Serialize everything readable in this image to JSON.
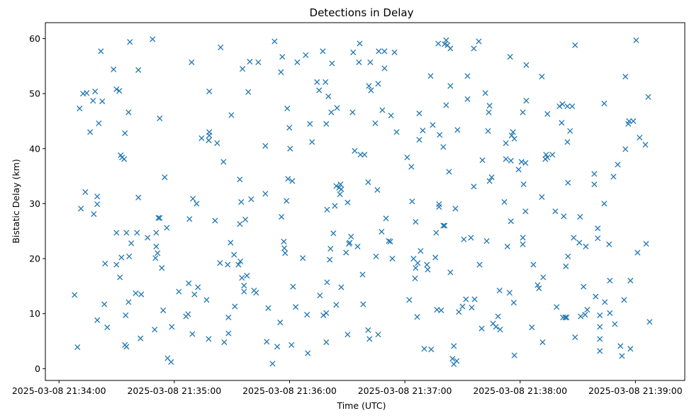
{
  "chart_data": {
    "type": "scatter",
    "title": "Detections in Delay",
    "xlabel": "Time (UTC)",
    "ylabel": "Bistatic Delay (km)",
    "x_unit": "seconds after 2025-03-08 21:34:00 UTC",
    "xlim": [
      -7.1,
      325.7
    ],
    "ylim": [
      -2.15,
      62.9
    ],
    "grid": false,
    "marker": "x",
    "color": "#1f77b4",
    "x_ticks": [
      {
        "value": 0,
        "label": "2025-03-08 21:34:00"
      },
      {
        "value": 60,
        "label": "2025-03-08 21:35:00"
      },
      {
        "value": 120,
        "label": "2025-03-08 21:36:00"
      },
      {
        "value": 180,
        "label": "2025-03-08 21:37:00"
      },
      {
        "value": 240,
        "label": "2025-03-08 21:38:00"
      },
      {
        "value": 300,
        "label": "2025-03-08 21:39:00"
      }
    ],
    "y_ticks": [
      {
        "value": 0,
        "label": "0"
      },
      {
        "value": 10,
        "label": "10"
      },
      {
        "value": 20,
        "label": "20"
      },
      {
        "value": 30,
        "label": "30"
      },
      {
        "value": 40,
        "label": "40"
      },
      {
        "value": 50,
        "label": "50"
      },
      {
        "value": 60,
        "label": "60"
      }
    ],
    "points": [
      [
        8.1,
        13.4
      ],
      [
        9.6,
        3.9
      ],
      [
        10.7,
        47.3
      ],
      [
        11.4,
        29.1
      ],
      [
        12.5,
        50.0
      ],
      [
        13.7,
        32.1
      ],
      [
        14.4,
        50.1
      ],
      [
        16.2,
        43.0
      ],
      [
        17.7,
        48.7
      ],
      [
        18.1,
        28.1
      ],
      [
        18.8,
        50.4
      ],
      [
        19.9,
        31.3
      ],
      [
        19.9,
        29.9
      ],
      [
        19.9,
        8.8
      ],
      [
        20.7,
        44.6
      ],
      [
        21.8,
        57.7
      ],
      [
        22.5,
        48.6
      ],
      [
        23.6,
        11.7
      ],
      [
        24.0,
        19.1
      ],
      [
        25.1,
        7.5
      ],
      [
        28.4,
        54.4
      ],
      [
        29.9,
        50.8
      ],
      [
        29.9,
        24.7
      ],
      [
        29.9,
        18.9
      ],
      [
        31.4,
        50.5
      ],
      [
        31.7,
        16.6
      ],
      [
        32.1,
        38.8
      ],
      [
        32.5,
        20.2
      ],
      [
        32.8,
        38.4
      ],
      [
        33.9,
        38.1
      ],
      [
        34.3,
        42.8
      ],
      [
        34.3,
        4.3
      ],
      [
        35.1,
        24.7
      ],
      [
        34.7,
        9.7
      ],
      [
        35.1,
        4.0
      ],
      [
        36.2,
        12.1
      ],
      [
        36.2,
        46.6
      ],
      [
        36.5,
        20.4
      ],
      [
        36.9,
        59.4
      ],
      [
        37.6,
        22.8
      ],
      [
        39.9,
        13.7
      ],
      [
        40.6,
        24.7
      ],
      [
        41.3,
        31.1
      ],
      [
        41.3,
        54.3
      ],
      [
        42.8,
        13.5
      ],
      [
        42.4,
        5.5
      ],
      [
        46.1,
        23.8
      ],
      [
        48.7,
        59.9
      ],
      [
        49.8,
        7.1
      ],
      [
        50.2,
        20.1
      ],
      [
        50.6,
        24.7
      ],
      [
        50.6,
        22.2
      ],
      [
        51.3,
        21.0
      ],
      [
        51.7,
        27.4
      ],
      [
        52.4,
        27.4
      ],
      [
        52.4,
        45.5
      ],
      [
        53.5,
        18.3
      ],
      [
        54.2,
        10.6
      ],
      [
        55.0,
        34.8
      ],
      [
        56.1,
        25.6
      ],
      [
        56.5,
        1.9
      ],
      [
        58.3,
        1.2
      ],
      [
        58.7,
        7.6
      ],
      [
        62.4,
        14.0
      ],
      [
        66.1,
        9.5
      ],
      [
        67.2,
        9.9
      ],
      [
        67.5,
        15.5
      ],
      [
        67.9,
        27.2
      ],
      [
        69.0,
        55.7
      ],
      [
        69.4,
        6.3
      ],
      [
        69.7,
        30.9
      ],
      [
        70.5,
        13.5
      ],
      [
        71.6,
        30.0
      ],
      [
        72.3,
        14.8
      ],
      [
        74.2,
        41.9
      ],
      [
        76.8,
        12.5
      ],
      [
        77.9,
        41.5
      ],
      [
        78.2,
        42.4
      ],
      [
        78.2,
        43.0
      ],
      [
        78.2,
        50.4
      ],
      [
        77.9,
        5.4
      ],
      [
        81.2,
        26.9
      ],
      [
        82.3,
        41.0
      ],
      [
        83.8,
        19.2
      ],
      [
        84.1,
        58.4
      ],
      [
        85.6,
        37.6
      ],
      [
        86.0,
        4.8
      ],
      [
        87.8,
        18.9
      ],
      [
        88.2,
        9.3
      ],
      [
        88.2,
        6.4
      ],
      [
        89.3,
        22.9
      ],
      [
        89.7,
        46.1
      ],
      [
        91.1,
        20.7
      ],
      [
        91.5,
        11.3
      ],
      [
        93.4,
        18.9
      ],
      [
        94.1,
        34.4
      ],
      [
        94.1,
        26.3
      ],
      [
        94.4,
        19.5
      ],
      [
        94.8,
        30.3
      ],
      [
        95.2,
        16.5
      ],
      [
        95.5,
        54.5
      ],
      [
        96.3,
        15.1
      ],
      [
        96.3,
        14.0
      ],
      [
        97.0,
        27.1
      ],
      [
        97.8,
        16.9
      ],
      [
        98.5,
        50.3
      ],
      [
        99.3,
        55.8
      ],
      [
        100.0,
        30.8
      ],
      [
        101.5,
        14.2
      ],
      [
        102.6,
        13.8
      ],
      [
        103.7,
        55.7
      ],
      [
        107.4,
        40.5
      ],
      [
        107.4,
        31.8
      ],
      [
        108.1,
        4.9
      ],
      [
        108.9,
        11.0
      ],
      [
        111.1,
        0.9
      ],
      [
        112.2,
        59.5
      ],
      [
        113.6,
        4.0
      ],
      [
        115.1,
        8.4
      ],
      [
        115.5,
        53.9
      ],
      [
        115.8,
        27.6
      ],
      [
        116.2,
        56.7
      ],
      [
        117.0,
        23.1
      ],
      [
        117.3,
        21.9
      ],
      [
        117.7,
        21.0
      ],
      [
        118.4,
        30.5
      ],
      [
        118.8,
        47.3
      ],
      [
        119.2,
        34.5
      ],
      [
        119.9,
        43.8
      ],
      [
        120.3,
        40.0
      ],
      [
        121.0,
        4.3
      ],
      [
        121.4,
        34.1
      ],
      [
        121.8,
        14.9
      ],
      [
        123.2,
        11.2
      ],
      [
        124.0,
        55.7
      ],
      [
        126.9,
        20.1
      ],
      [
        128.4,
        57.0
      ],
      [
        129.1,
        9.8
      ],
      [
        129.5,
        2.8
      ],
      [
        130.6,
        44.5
      ],
      [
        131.7,
        41.2
      ],
      [
        134.3,
        52.1
      ],
      [
        135.4,
        50.6
      ],
      [
        135.8,
        13.3
      ],
      [
        137.3,
        57.7
      ],
      [
        137.6,
        9.7
      ],
      [
        138.7,
        52.1
      ],
      [
        139.1,
        44.5
      ],
      [
        139.1,
        4.8
      ],
      [
        139.1,
        10.1
      ],
      [
        139.5,
        15.7
      ],
      [
        139.5,
        28.9
      ],
      [
        140.2,
        49.5
      ],
      [
        140.9,
        19.8
      ],
      [
        141.3,
        21.8
      ],
      [
        141.7,
        46.6
      ],
      [
        142.1,
        55.5
      ],
      [
        142.8,
        24.6
      ],
      [
        143.6,
        29.6
      ],
      [
        144.3,
        11.6
      ],
      [
        144.3,
        33.2
      ],
      [
        144.7,
        47.4
      ],
      [
        145.8,
        32.9
      ],
      [
        146.2,
        31.7
      ],
      [
        146.5,
        33.5
      ],
      [
        146.9,
        14.8
      ],
      [
        146.9,
        32.6
      ],
      [
        149.4,
        21.1
      ],
      [
        150.2,
        30.2
      ],
      [
        150.2,
        6.2
      ],
      [
        150.9,
        22.7
      ],
      [
        151.3,
        22.9
      ],
      [
        152.0,
        24.0
      ],
      [
        152.8,
        46.6
      ],
      [
        153.1,
        57.5
      ],
      [
        153.9,
        39.6
      ],
      [
        155.4,
        22.2
      ],
      [
        156.1,
        55.7
      ],
      [
        156.5,
        59.1
      ],
      [
        156.9,
        38.9
      ],
      [
        158.0,
        17.1
      ],
      [
        158.3,
        11.7
      ],
      [
        159.0,
        38.9
      ],
      [
        160.9,
        33.9
      ],
      [
        160.9,
        7.0
      ],
      [
        161.3,
        51.4
      ],
      [
        161.6,
        5.4
      ],
      [
        162.0,
        55.7
      ],
      [
        162.4,
        50.6
      ],
      [
        164.6,
        44.6
      ],
      [
        165.0,
        20.4
      ],
      [
        165.7,
        32.5
      ],
      [
        166.1,
        6.2
      ],
      [
        166.1,
        51.8
      ],
      [
        166.4,
        57.7
      ],
      [
        167.9,
        24.9
      ],
      [
        168.3,
        47.0
      ],
      [
        169.4,
        54.6
      ],
      [
        169.4,
        57.7
      ],
      [
        170.2,
        27.3
      ],
      [
        171.6,
        23.2
      ],
      [
        172.4,
        23.1
      ],
      [
        172.8,
        46.0
      ],
      [
        173.5,
        20.0
      ],
      [
        174.6,
        57.5
      ],
      [
        175.7,
        43.0
      ],
      [
        181.2,
        38.4
      ],
      [
        182.3,
        12.5
      ],
      [
        183.4,
        36.7
      ],
      [
        183.8,
        30.4
      ],
      [
        184.5,
        20.0
      ],
      [
        185.3,
        16.4
      ],
      [
        185.6,
        18.3
      ],
      [
        185.6,
        26.7
      ],
      [
        186.4,
        9.4
      ],
      [
        186.7,
        19.2
      ],
      [
        187.5,
        46.4
      ],
      [
        187.5,
        41.6
      ],
      [
        188.2,
        21.4
      ],
      [
        189.3,
        43.3
      ],
      [
        190.1,
        3.6
      ],
      [
        191.5,
        18.9
      ],
      [
        191.9,
        18.0
      ],
      [
        193.4,
        53.2
      ],
      [
        193.7,
        3.5
      ],
      [
        194.5,
        44.3
      ],
      [
        195.9,
        20.2
      ],
      [
        196.3,
        24.7
      ],
      [
        196.7,
        10.7
      ],
      [
        197.4,
        59.1
      ],
      [
        197.8,
        29.4
      ],
      [
        197.8,
        29.9
      ],
      [
        198.1,
        42.5
      ],
      [
        198.9,
        10.6
      ],
      [
        200.0,
        26.0
      ],
      [
        200.0,
        40.3
      ],
      [
        200.7,
        59.0
      ],
      [
        200.7,
        26.0
      ],
      [
        201.5,
        47.9
      ],
      [
        201.5,
        59.7
      ],
      [
        202.2,
        58.8
      ],
      [
        203.7,
        51.4
      ],
      [
        203.7,
        58.2
      ],
      [
        203.0,
        35.8
      ],
      [
        203.7,
        17.5
      ],
      [
        204.8,
        1.8
      ],
      [
        205.5,
        4.1
      ],
      [
        205.5,
        0.8
      ],
      [
        206.3,
        29.1
      ],
      [
        207.0,
        1.4
      ],
      [
        207.4,
        43.4
      ],
      [
        208.1,
        10.3
      ],
      [
        210.0,
        11.3
      ],
      [
        210.7,
        23.5
      ],
      [
        211.8,
        12.6
      ],
      [
        212.6,
        53.2
      ],
      [
        212.6,
        49.0
      ],
      [
        214.4,
        23.8
      ],
      [
        214.8,
        11.1
      ],
      [
        215.9,
        33.1
      ],
      [
        215.9,
        58.2
      ],
      [
        216.3,
        12.6
      ],
      [
        218.5,
        59.5
      ],
      [
        218.9,
        18.9
      ],
      [
        220.0,
        7.3
      ],
      [
        220.4,
        37.9
      ],
      [
        221.9,
        50.1
      ],
      [
        222.6,
        23.2
      ],
      [
        223.3,
        43.2
      ],
      [
        223.7,
        46.6
      ],
      [
        224.1,
        47.8
      ],
      [
        224.1,
        34.1
      ],
      [
        225.2,
        34.8
      ],
      [
        225.9,
        8.2
      ],
      [
        227.4,
        7.6
      ],
      [
        228.5,
        9.5
      ],
      [
        229.3,
        14.2
      ],
      [
        229.6,
        7.1
      ],
      [
        231.8,
        30.3
      ],
      [
        232.6,
        38.1
      ],
      [
        232.6,
        41.0
      ],
      [
        233.4,
        22.2
      ],
      [
        234.5,
        13.8
      ],
      [
        234.8,
        56.7
      ],
      [
        235.2,
        26.8
      ],
      [
        235.2,
        37.8
      ],
      [
        235.6,
        42.4
      ],
      [
        236.3,
        43.0
      ],
      [
        236.7,
        12.0
      ],
      [
        237.0,
        2.4
      ],
      [
        237.0,
        41.8
      ],
      [
        239.2,
        36.2
      ],
      [
        240.7,
        37.6
      ],
      [
        241.4,
        46.6
      ],
      [
        241.4,
        23.8
      ],
      [
        241.4,
        22.6
      ],
      [
        241.8,
        33.5
      ],
      [
        242.8,
        28.6
      ],
      [
        242.8,
        37.4
      ],
      [
        243.2,
        48.7
      ],
      [
        243.2,
        55.2
      ],
      [
        246.1,
        7.5
      ],
      [
        246.9,
        18.9
      ],
      [
        249.1,
        15.2
      ],
      [
        249.8,
        14.6
      ],
      [
        251.3,
        53.1
      ],
      [
        251.3,
        31.2
      ],
      [
        251.7,
        4.8
      ],
      [
        252.0,
        16.6
      ],
      [
        253.1,
        38.1
      ],
      [
        253.5,
        38.9
      ],
      [
        254.2,
        46.3
      ],
      [
        254.2,
        38.4
      ],
      [
        256.8,
        38.9
      ],
      [
        258.3,
        28.6
      ],
      [
        259.0,
        11.2
      ],
      [
        260.5,
        47.7
      ],
      [
        261.6,
        44.7
      ],
      [
        262.0,
        48.1
      ],
      [
        262.3,
        9.3
      ],
      [
        262.7,
        27.7
      ],
      [
        263.5,
        9.3
      ],
      [
        263.8,
        18.6
      ],
      [
        264.2,
        9.3
      ],
      [
        264.6,
        41.2
      ],
      [
        264.6,
        47.7
      ],
      [
        264.9,
        20.4
      ],
      [
        264.9,
        33.8
      ],
      [
        266.0,
        43.2
      ],
      [
        267.1,
        47.7
      ],
      [
        267.9,
        23.8
      ],
      [
        268.6,
        5.7
      ],
      [
        268.6,
        58.8
      ],
      [
        270.8,
        22.9
      ],
      [
        271.2,
        27.6
      ],
      [
        271.5,
        9.5
      ],
      [
        273.0,
        14.9
      ],
      [
        273.8,
        9.8
      ],
      [
        274.2,
        22.2
      ],
      [
        274.9,
        10.7
      ],
      [
        278.6,
        35.4
      ],
      [
        278.6,
        33.5
      ],
      [
        279.3,
        13.1
      ],
      [
        280.4,
        25.5
      ],
      [
        280.4,
        23.7
      ],
      [
        281.5,
        9.7
      ],
      [
        281.5,
        7.6
      ],
      [
        281.5,
        5.4
      ],
      [
        281.5,
        3.2
      ],
      [
        283.8,
        48.2
      ],
      [
        283.8,
        30.0
      ],
      [
        284.1,
        12.1
      ],
      [
        286.3,
        22.6
      ],
      [
        286.7,
        10.1
      ],
      [
        286.7,
        16.0
      ],
      [
        288.6,
        34.9
      ],
      [
        289.3,
        8.1
      ],
      [
        290.8,
        37.1
      ],
      [
        292.2,
        4.1
      ],
      [
        293.0,
        2.3
      ],
      [
        294.1,
        12.5
      ],
      [
        294.8,
        53.1
      ],
      [
        294.8,
        39.9
      ],
      [
        296.3,
        44.5
      ],
      [
        296.7,
        45.0
      ],
      [
        297.4,
        16.0
      ],
      [
        297.4,
        3.6
      ],
      [
        298.9,
        45.0
      ],
      [
        300.4,
        59.7
      ],
      [
        301.1,
        21.1
      ],
      [
        302.2,
        42.0
      ],
      [
        305.2,
        40.7
      ],
      [
        305.6,
        22.7
      ],
      [
        306.7,
        49.4
      ],
      [
        307.4,
        8.5
      ]
    ]
  }
}
